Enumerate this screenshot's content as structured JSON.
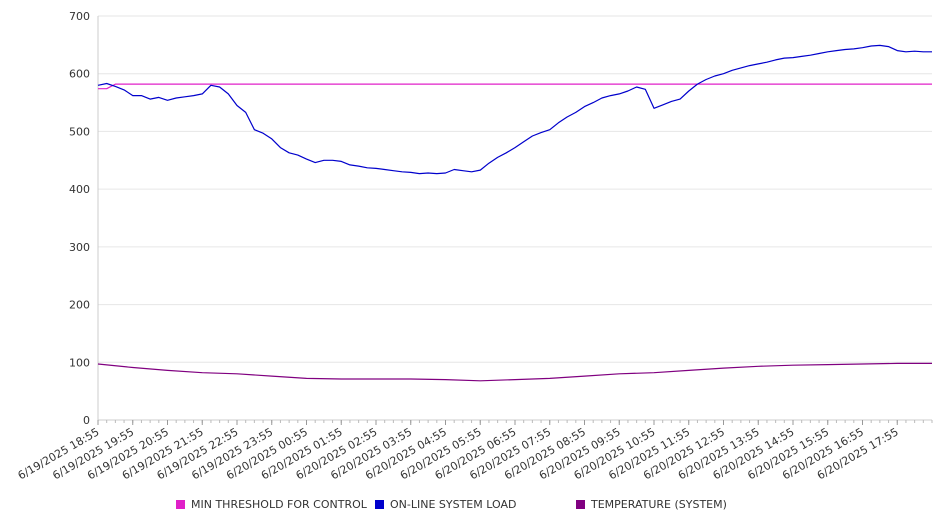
{
  "chart_data": {
    "type": "line",
    "yticks": [
      0,
      100,
      200,
      300,
      400,
      500,
      600,
      700
    ],
    "ylim": [
      0,
      700
    ],
    "grid": true,
    "x_tick_labels": [
      "6/19/2025 18:55",
      "6/19/2025 19:55",
      "6/19/2025 20:55",
      "6/19/2025 21:55",
      "6/19/2025 22:55",
      "6/19/2025 23:55",
      "6/20/2025 00:55",
      "6/20/2025 01:55",
      "6/20/2025 02:55",
      "6/20/2025 03:55",
      "6/20/2025 04:55",
      "6/20/2025 05:55",
      "6/20/2025 06:55",
      "6/20/2025 07:55",
      "6/20/2025 08:55",
      "6/20/2025 09:55",
      "6/20/2025 10:55",
      "6/20/2025 11:55",
      "6/20/2025 12:55",
      "6/20/2025 13:55",
      "6/20/2025 14:55",
      "6/20/2025 15:55",
      "6/20/2025 16:55",
      "6/20/2025 17:55"
    ],
    "xlim": [
      "6/19/2025 18:55",
      "6/20/2025 18:55"
    ],
    "legend_position": "bottom",
    "series": [
      {
        "name": "MIN THRESHOLD FOR CONTROL",
        "color": "#e020c8",
        "points": [
          [
            "6/19/2025 18:55",
            574
          ],
          [
            "6/19/2025 19:10",
            574
          ],
          [
            "6/19/2025 19:25",
            582
          ],
          [
            "6/20/2025 18:55",
            582
          ]
        ]
      },
      {
        "name": "ON-LINE SYSTEM LOAD",
        "color": "#0000cc",
        "points": [
          [
            "6/19/2025 18:55",
            580
          ],
          [
            "6/19/2025 19:10",
            583
          ],
          [
            "6/19/2025 19:25",
            578
          ],
          [
            "6/19/2025 19:40",
            572
          ],
          [
            "6/19/2025 19:55",
            562
          ],
          [
            "6/19/2025 20:10",
            562
          ],
          [
            "6/19/2025 20:25",
            556
          ],
          [
            "6/19/2025 20:40",
            559
          ],
          [
            "6/19/2025 20:55",
            554
          ],
          [
            "6/19/2025 21:10",
            558
          ],
          [
            "6/19/2025 21:25",
            560
          ],
          [
            "6/19/2025 21:40",
            562
          ],
          [
            "6/19/2025 21:55",
            565
          ],
          [
            "6/19/2025 22:10",
            580
          ],
          [
            "6/19/2025 22:25",
            577
          ],
          [
            "6/19/2025 22:40",
            565
          ],
          [
            "6/19/2025 22:55",
            545
          ],
          [
            "6/19/2025 23:10",
            533
          ],
          [
            "6/19/2025 23:25",
            503
          ],
          [
            "6/19/2025 23:40",
            497
          ],
          [
            "6/19/2025 23:55",
            487
          ],
          [
            "6/20/2025 00:10",
            472
          ],
          [
            "6/20/2025 00:25",
            463
          ],
          [
            "6/20/2025 00:40",
            459
          ],
          [
            "6/20/2025 00:55",
            452
          ],
          [
            "6/20/2025 01:10",
            446
          ],
          [
            "6/20/2025 01:25",
            450
          ],
          [
            "6/20/2025 01:40",
            450
          ],
          [
            "6/20/2025 01:55",
            448
          ],
          [
            "6/20/2025 02:10",
            442
          ],
          [
            "6/20/2025 02:25",
            440
          ],
          [
            "6/20/2025 02:40",
            437
          ],
          [
            "6/20/2025 02:55",
            436
          ],
          [
            "6/20/2025 03:10",
            434
          ],
          [
            "6/20/2025 03:25",
            432
          ],
          [
            "6/20/2025 03:40",
            430
          ],
          [
            "6/20/2025 03:55",
            429
          ],
          [
            "6/20/2025 04:10",
            427
          ],
          [
            "6/20/2025 04:25",
            428
          ],
          [
            "6/20/2025 04:40",
            427
          ],
          [
            "6/20/2025 04:55",
            428
          ],
          [
            "6/20/2025 05:10",
            434
          ],
          [
            "6/20/2025 05:25",
            432
          ],
          [
            "6/20/2025 05:40",
            430
          ],
          [
            "6/20/2025 05:55",
            433
          ],
          [
            "6/20/2025 06:10",
            445
          ],
          [
            "6/20/2025 06:25",
            455
          ],
          [
            "6/20/2025 06:40",
            463
          ],
          [
            "6/20/2025 06:55",
            472
          ],
          [
            "6/20/2025 07:10",
            482
          ],
          [
            "6/20/2025 07:25",
            492
          ],
          [
            "6/20/2025 07:40",
            498
          ],
          [
            "6/20/2025 07:55",
            503
          ],
          [
            "6/20/2025 08:10",
            515
          ],
          [
            "6/20/2025 08:25",
            525
          ],
          [
            "6/20/2025 08:40",
            533
          ],
          [
            "6/20/2025 08:55",
            543
          ],
          [
            "6/20/2025 09:10",
            550
          ],
          [
            "6/20/2025 09:25",
            558
          ],
          [
            "6/20/2025 09:40",
            562
          ],
          [
            "6/20/2025 09:55",
            565
          ],
          [
            "6/20/2025 10:10",
            570
          ],
          [
            "6/20/2025 10:25",
            577
          ],
          [
            "6/20/2025 10:40",
            573
          ],
          [
            "6/20/2025 10:55",
            540
          ],
          [
            "6/20/2025 11:10",
            546
          ],
          [
            "6/20/2025 11:25",
            552
          ],
          [
            "6/20/2025 11:40",
            556
          ],
          [
            "6/20/2025 11:55",
            570
          ],
          [
            "6/20/2025 12:10",
            582
          ],
          [
            "6/20/2025 12:25",
            590
          ],
          [
            "6/20/2025 12:40",
            596
          ],
          [
            "6/20/2025 12:55",
            600
          ],
          [
            "6/20/2025 13:10",
            606
          ],
          [
            "6/20/2025 13:25",
            610
          ],
          [
            "6/20/2025 13:40",
            614
          ],
          [
            "6/20/2025 13:55",
            617
          ],
          [
            "6/20/2025 14:10",
            620
          ],
          [
            "6/20/2025 14:25",
            624
          ],
          [
            "6/20/2025 14:40",
            627
          ],
          [
            "6/20/2025 14:55",
            628
          ],
          [
            "6/20/2025 15:10",
            630
          ],
          [
            "6/20/2025 15:25",
            632
          ],
          [
            "6/20/2025 15:40",
            635
          ],
          [
            "6/20/2025 15:55",
            638
          ],
          [
            "6/20/2025 16:10",
            640
          ],
          [
            "6/20/2025 16:25",
            642
          ],
          [
            "6/20/2025 16:40",
            643
          ],
          [
            "6/20/2025 16:55",
            645
          ],
          [
            "6/20/2025 17:10",
            648
          ],
          [
            "6/20/2025 17:25",
            649
          ],
          [
            "6/20/2025 17:40",
            647
          ],
          [
            "6/20/2025 17:55",
            640
          ],
          [
            "6/20/2025 18:10",
            638
          ],
          [
            "6/20/2025 18:25",
            639
          ],
          [
            "6/20/2025 18:40",
            638
          ],
          [
            "6/20/2025 18:55",
            638
          ]
        ]
      },
      {
        "name": "TEMPERATURE (SYSTEM)",
        "color": "#800080",
        "points": [
          [
            "6/19/2025 18:55",
            97
          ],
          [
            "6/19/2025 19:55",
            91
          ],
          [
            "6/19/2025 20:55",
            86
          ],
          [
            "6/19/2025 21:55",
            82
          ],
          [
            "6/19/2025 22:55",
            80
          ],
          [
            "6/19/2025 23:55",
            76
          ],
          [
            "6/20/2025 00:55",
            72
          ],
          [
            "6/20/2025 01:55",
            71
          ],
          [
            "6/20/2025 02:55",
            71
          ],
          [
            "6/20/2025 03:55",
            71
          ],
          [
            "6/20/2025 04:55",
            70
          ],
          [
            "6/20/2025 05:55",
            68
          ],
          [
            "6/20/2025 06:55",
            70
          ],
          [
            "6/20/2025 07:55",
            72
          ],
          [
            "6/20/2025 08:55",
            76
          ],
          [
            "6/20/2025 09:55",
            80
          ],
          [
            "6/20/2025 10:55",
            82
          ],
          [
            "6/20/2025 11:55",
            86
          ],
          [
            "6/20/2025 12:55",
            90
          ],
          [
            "6/20/2025 13:55",
            93
          ],
          [
            "6/20/2025 14:55",
            95
          ],
          [
            "6/20/2025 15:55",
            96
          ],
          [
            "6/20/2025 16:55",
            97
          ],
          [
            "6/20/2025 17:55",
            98
          ],
          [
            "6/20/2025 18:55",
            98
          ]
        ]
      }
    ]
  }
}
